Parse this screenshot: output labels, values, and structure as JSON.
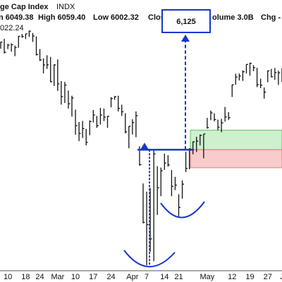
{
  "header": {
    "title": "ge Cap Index",
    "symbol": "INDX",
    "stats": [
      "n 6049.38",
      "High 6059.40",
      "Low 6002.32",
      "Clos",
      "olume 3.0B",
      "Chg -"
    ],
    "price_label": "022.24"
  },
  "chart_data": {
    "type": "ohlc",
    "categories": [
      null,
      null,
      "10",
      null,
      null,
      null,
      null,
      "18",
      null,
      null,
      null,
      "24",
      null,
      null,
      null,
      null,
      "Mar",
      null,
      null,
      null,
      null,
      "10",
      null,
      null,
      null,
      null,
      "17",
      null,
      null,
      null,
      null,
      "24",
      null,
      null,
      null,
      null,
      null,
      "Apr",
      null,
      null,
      null,
      "7",
      null,
      null,
      null,
      null,
      "14",
      null,
      null,
      null,
      "21",
      null,
      null,
      null,
      null,
      null,
      null,
      null,
      "May",
      null,
      null,
      null,
      null,
      null,
      null,
      "12",
      null,
      null,
      null,
      null,
      "19",
      null,
      null,
      null,
      null,
      "27",
      null,
      null,
      null,
      "J"
    ],
    "high": [
      6084,
      6101,
      6073,
      6076,
      6064,
      6117,
      6128,
      6129,
      6147,
      6134,
      6115,
      6044,
      5992,
      6009,
      6000,
      5959,
      5986,
      5865,
      5860,
      5812,
      5783,
      5705,
      5636,
      5642,
      5597,
      5645,
      5703,
      5670,
      5715,
      5711,
      5670,
      5775,
      5781,
      5783,
      5733,
      5685,
      5613,
      5651,
      5695,
      5500,
      5292,
      5246,
      5267,
      5481,
      5389,
      5381,
      5459,
      5450,
      5367,
      5329,
      5232,
      5309,
      5469,
      5489,
      5528,
      5553,
      5566,
      5569,
      5659,
      5700,
      5684,
      5649,
      5654,
      5720,
      5691,
      5845,
      5906,
      5907,
      5925,
      5959,
      5968,
      5954,
      5939,
      5878,
      5829,
      5924,
      5933,
      5938,
      5923,
      5937
    ],
    "low": [
      6046,
      6019,
      6044,
      6029,
      6004,
      6051,
      6107,
      6100,
      6112,
      6084,
      6008,
      5977,
      5908,
      5933,
      5858,
      5837,
      5810,
      5733,
      5742,
      5711,
      5666,
      5565,
      5529,
      5547,
      5505,
      5562,
      5633,
      5603,
      5622,
      5641,
      5603,
      5718,
      5760,
      5695,
      5670,
      5572,
      5489,
      5566,
      5551,
      5391,
      5069,
      4835,
      4910,
      4857,
      5116,
      5221,
      5368,
      5386,
      5221,
      5255,
      5101,
      5207,
      5356,
      5371,
      5455,
      5468,
      5505,
      5433,
      5599,
      5646,
      5639,
      5590,
      5579,
      5638,
      5647,
      5776,
      5845,
      5868,
      5866,
      5907,
      5895,
      5920,
      5831,
      5825,
      5767,
      5858,
      5886,
      5872,
      5843,
      5861
    ],
    "close": [
      6083,
      6026,
      6066,
      6068,
      6052,
      6115,
      6114,
      6129,
      6144,
      6117,
      6013,
      5983,
      5955,
      5956,
      5861,
      5955,
      5849,
      5778,
      5842,
      5738,
      5770,
      5615,
      5572,
      5599,
      5522,
      5639,
      5675,
      5615,
      5675,
      5663,
      5668,
      5767,
      5777,
      5712,
      5693,
      5581,
      5612,
      5633,
      5671,
      5397,
      5074,
      5062,
      4982,
      5457,
      5268,
      5363,
      5406,
      5396,
      5276,
      5283,
      5158,
      5288,
      5376,
      5485,
      5525,
      5529,
      5561,
      5569,
      5604,
      5687,
      5650,
      5607,
      5631,
      5664,
      5660,
      5844,
      5887,
      5893,
      5917,
      5958,
      5964,
      5940,
      5845,
      5842,
      5803,
      5922,
      5889,
      5912,
      5911,
      5936
    ],
    "color": "#111111",
    "ylim": [
      4800,
      6200
    ],
    "neckline": 5481,
    "target": {
      "value": 6125,
      "label": "6,125"
    },
    "green_zone": [
      5481,
      5590
    ],
    "red_zone": [
      5380,
      5481
    ],
    "annotation_color": "#1537c9"
  }
}
